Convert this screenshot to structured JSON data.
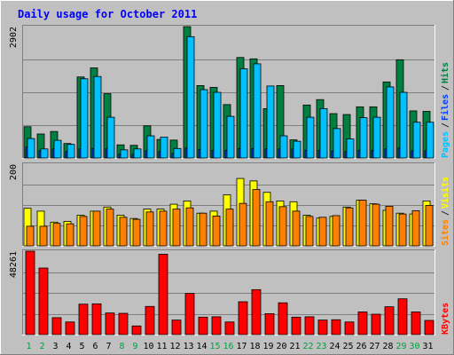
{
  "chart_data": {
    "type": "bar",
    "title": "Daily usage for October 2011",
    "categories": [
      "1",
      "2",
      "3",
      "4",
      "5",
      "6",
      "7",
      "8",
      "9",
      "10",
      "11",
      "12",
      "13",
      "14",
      "15",
      "16",
      "17",
      "18",
      "19",
      "20",
      "21",
      "22",
      "23",
      "24",
      "25",
      "26",
      "27",
      "28",
      "29",
      "30",
      "31"
    ],
    "weekend_days": [
      "1",
      "2",
      "8",
      "9",
      "15",
      "16",
      "22",
      "23",
      "29",
      "30"
    ],
    "panels": [
      {
        "name": "hits-files-pages",
        "ymax": 2902,
        "ymax_label": "2902",
        "series": [
          {
            "name": "Hits",
            "color": "#008040",
            "values": [
              690,
              530,
              585,
              320,
              1790,
              1990,
              1420,
              290,
              280,
              710,
              410,
              395,
              2902,
              1600,
              1560,
              1180,
              2220,
              2190,
              1090,
              1600,
              400,
              1170,
              1290,
              980,
              960,
              1130,
              1130,
              1680,
              2170,
              1040,
              1030
            ]
          },
          {
            "name": "Files",
            "color": "#0040ff",
            "values": [
              240,
              160,
              200,
              140,
              200,
              210,
              200,
              90,
              80,
              160,
              140,
              100,
              220,
              190,
              170,
              170,
              210,
              210,
              200,
              200,
              200,
              170,
              170,
              150,
              140,
              170,
              170,
              200,
              220,
              160,
              160
            ]
          },
          {
            "name": "Pages",
            "color": "#00c0ff",
            "values": [
              430,
              200,
              390,
              300,
              1750,
              1800,
              900,
              180,
              200,
              490,
              460,
              210,
              2680,
              1510,
              1450,
              920,
              1970,
              2080,
              1590,
              490,
              370,
              900,
              1090,
              650,
              420,
              890,
              900,
              1570,
              1450,
              790,
              790
            ]
          }
        ],
        "legend": [
          {
            "label": "Pages",
            "color": "#00c0ff"
          },
          {
            "label": "Files",
            "color": "#0040ff"
          },
          {
            "label": "Hits",
            "color": "#008040"
          }
        ]
      },
      {
        "name": "sites-visits",
        "ymax": 200,
        "ymax_label": "200",
        "series": [
          {
            "name": "Visits",
            "color": "#ffff00",
            "values": [
              92,
              85,
              58,
              60,
              75,
              85,
              95,
              75,
              67,
              90,
              90,
              102,
              110,
              80,
              85,
              125,
              165,
              159,
              131,
              110,
              108,
              75,
              68,
              72,
              95,
              112,
              103,
              87,
              80,
              78,
              110
            ]
          },
          {
            "name": "Sites",
            "color": "#ff8000",
            "values": [
              48,
              48,
              55,
              54,
              72,
              85,
              90,
              70,
              65,
              83,
              85,
              90,
              93,
              80,
              73,
              90,
              104,
              138,
              108,
              96,
              85,
              72,
              70,
              74,
              93,
              112,
              102,
              97,
              78,
              86,
              99
            ]
          }
        ],
        "legend": [
          {
            "label": "Sites",
            "color": "#ff8000"
          },
          {
            "label": "Visits",
            "color": "#ffff00"
          }
        ]
      },
      {
        "name": "kbytes",
        "ymax": 48261,
        "ymax_label": "48261",
        "series": [
          {
            "name": "KBytes",
            "color": "#ff0000",
            "values": [
              48261,
              38500,
              9800,
              7300,
              17600,
              17800,
              12500,
              12300,
              5000,
              16300,
              46500,
              8400,
              23800,
              10100,
              10300,
              7300,
              19000,
              26000,
              12100,
              18400,
              10100,
              10300,
              8400,
              8600,
              7300,
              13100,
              11800,
              16100,
              20700,
              13100,
              8200
            ]
          }
        ],
        "legend": [
          {
            "label": "KBytes",
            "color": "#ff0000"
          }
        ]
      }
    ],
    "legend_separator": "/",
    "grid": true,
    "colors": {
      "background": "#c0c0c0",
      "frame_light": "#ffffff",
      "frame_dark": "#808080",
      "title": "#0000ff",
      "weekday_label": "#000000",
      "weekend_label": "#00a040",
      "gridline": "#808080"
    }
  }
}
